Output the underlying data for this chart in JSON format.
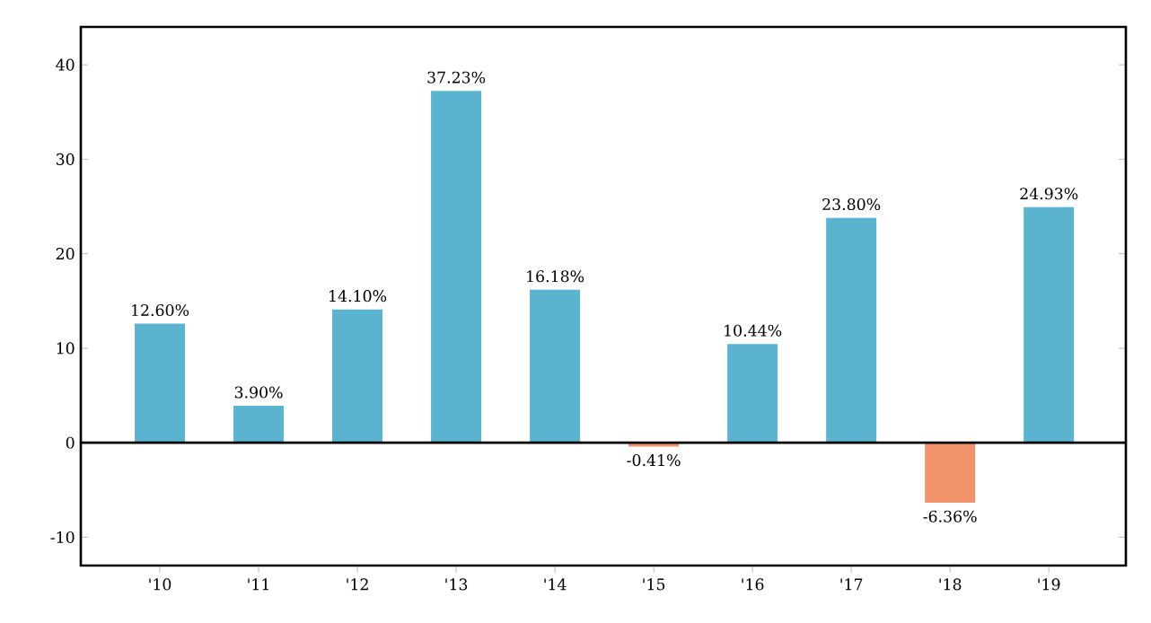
{
  "chart_data": {
    "type": "bar",
    "categories": [
      "'10",
      "'11",
      "'12",
      "'13",
      "'14",
      "'15",
      "'16",
      "'17",
      "'18",
      "'19"
    ],
    "values": [
      12.6,
      3.9,
      14.1,
      37.23,
      16.18,
      -0.41,
      10.44,
      23.8,
      -6.36,
      24.93
    ],
    "value_labels": [
      "12.60%",
      "3.90%",
      "14.10%",
      "37.23%",
      "16.18%",
      "-0.41%",
      "10.44%",
      "23.80%",
      "-6.36%",
      "24.93%"
    ],
    "colors": [
      "#5ab4d0",
      "#5ab4d0",
      "#5ab4d0",
      "#5ab4d0",
      "#5ab4d0",
      "#f0926a",
      "#5ab4d0",
      "#5ab4d0",
      "#f0926a",
      "#5ab4d0"
    ],
    "ylim": [
      -13,
      44
    ],
    "yticks": [
      -10,
      0,
      10,
      20,
      30,
      40
    ],
    "ref_lines": [
      {
        "axis": "y",
        "value": 0,
        "color": "#000000"
      }
    ],
    "grid": false
  }
}
